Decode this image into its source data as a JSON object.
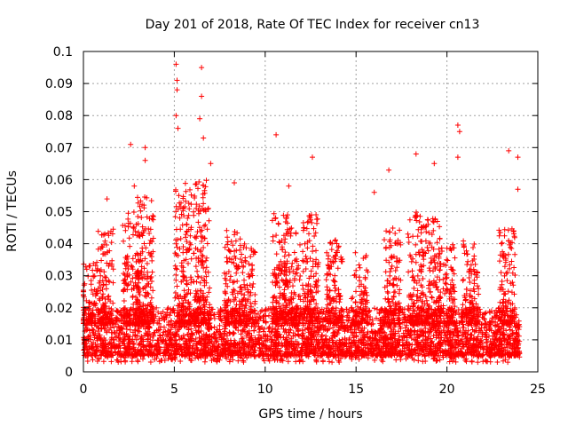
{
  "chart_data": {
    "type": "scatter",
    "title": "Day 201 of 2018, Rate Of TEC Index for receiver cn13",
    "xlabel": "GPS time / hours",
    "ylabel": "ROTI / TECUs",
    "xlim": [
      0,
      25
    ],
    "ylim": [
      0,
      0.1
    ],
    "x_ticks": [
      0,
      5,
      10,
      15,
      20,
      25
    ],
    "x_tick_labels": [
      "0",
      "5",
      "10",
      "15",
      "20",
      "25"
    ],
    "y_ticks": [
      0,
      0.01,
      0.02,
      0.03,
      0.04,
      0.05,
      0.06,
      0.07,
      0.08,
      0.09,
      0.1
    ],
    "y_tick_labels": [
      "0",
      "0.01",
      "0.02",
      "0.03",
      "0.04",
      "0.05",
      "0.06",
      "0.07",
      "0.08",
      "0.09",
      "0.1"
    ],
    "grid": true,
    "marker": "plus",
    "color": "#ff0000",
    "notable_points": [
      {
        "x": 5.1,
        "y": 0.096
      },
      {
        "x": 5.15,
        "y": 0.091
      },
      {
        "x": 5.15,
        "y": 0.088
      },
      {
        "x": 6.5,
        "y": 0.095
      },
      {
        "x": 6.5,
        "y": 0.086
      },
      {
        "x": 6.4,
        "y": 0.079
      },
      {
        "x": 6.6,
        "y": 0.073
      },
      {
        "x": 5.1,
        "y": 0.08
      },
      {
        "x": 5.2,
        "y": 0.076
      },
      {
        "x": 10.6,
        "y": 0.074
      },
      {
        "x": 20.6,
        "y": 0.077
      },
      {
        "x": 20.7,
        "y": 0.075
      },
      {
        "x": 20.6,
        "y": 0.067
      },
      {
        "x": 2.6,
        "y": 0.071
      },
      {
        "x": 3.4,
        "y": 0.07
      },
      {
        "x": 3.4,
        "y": 0.066
      },
      {
        "x": 12.6,
        "y": 0.067
      },
      {
        "x": 23.4,
        "y": 0.069
      },
      {
        "x": 23.9,
        "y": 0.067
      },
      {
        "x": 18.3,
        "y": 0.068
      },
      {
        "x": 16.8,
        "y": 0.063
      },
      {
        "x": 19.3,
        "y": 0.065
      },
      {
        "x": 7.0,
        "y": 0.065
      },
      {
        "x": 8.3,
        "y": 0.059
      },
      {
        "x": 11.3,
        "y": 0.058
      },
      {
        "x": 23.9,
        "y": 0.057
      },
      {
        "x": 16.0,
        "y": 0.056
      },
      {
        "x": 2.8,
        "y": 0.058
      },
      {
        "x": 1.3,
        "y": 0.054
      }
    ],
    "bulk_distribution": {
      "x_range": [
        0,
        24
      ],
      "typical_y_range": [
        0.005,
        0.02
      ],
      "clusters": [
        {
          "x_center": 0.3,
          "peak_y": 0.035
        },
        {
          "x_center": 1.2,
          "peak_y": 0.045
        },
        {
          "x_center": 2.6,
          "peak_y": 0.05
        },
        {
          "x_center": 3.4,
          "peak_y": 0.055
        },
        {
          "x_center": 5.5,
          "peak_y": 0.06
        },
        {
          "x_center": 6.5,
          "peak_y": 0.06
        },
        {
          "x_center": 8.2,
          "peak_y": 0.045
        },
        {
          "x_center": 9.0,
          "peak_y": 0.04
        },
        {
          "x_center": 10.8,
          "peak_y": 0.05
        },
        {
          "x_center": 11.5,
          "peak_y": 0.045
        },
        {
          "x_center": 12.5,
          "peak_y": 0.05
        },
        {
          "x_center": 13.8,
          "peak_y": 0.042
        },
        {
          "x_center": 15.2,
          "peak_y": 0.038
        },
        {
          "x_center": 17.0,
          "peak_y": 0.045
        },
        {
          "x_center": 18.3,
          "peak_y": 0.05
        },
        {
          "x_center": 19.2,
          "peak_y": 0.048
        },
        {
          "x_center": 20.0,
          "peak_y": 0.04
        },
        {
          "x_center": 21.3,
          "peak_y": 0.042
        },
        {
          "x_center": 23.3,
          "peak_y": 0.045
        }
      ]
    }
  }
}
